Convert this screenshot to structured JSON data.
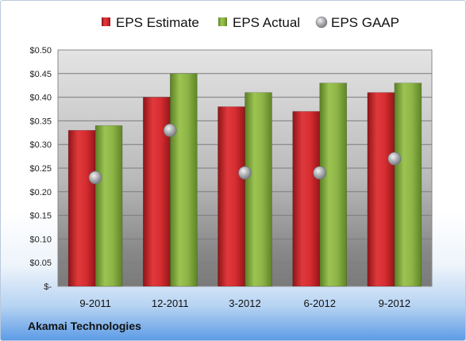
{
  "company": "Akamai Technologies",
  "chart_data": {
    "type": "bar",
    "categories": [
      "9-2011",
      "12-2011",
      "3-2012",
      "6-2012",
      "9-2012"
    ],
    "series": [
      {
        "name": "EPS Estimate",
        "kind": "bar",
        "color": "#c0262c",
        "values": [
          0.33,
          0.4,
          0.38,
          0.37,
          0.41
        ]
      },
      {
        "name": "EPS Actual",
        "kind": "bar",
        "color": "#7aa23a",
        "values": [
          0.34,
          0.45,
          0.41,
          0.43,
          0.43
        ]
      },
      {
        "name": "EPS GAAP",
        "kind": "marker",
        "color": "#a9acb1",
        "values": [
          0.23,
          0.33,
          0.24,
          0.24,
          0.27
        ]
      }
    ],
    "yticks": [
      "$-",
      "$0.05",
      "$0.10",
      "$0.15",
      "$0.20",
      "$0.25",
      "$0.30",
      "$0.35",
      "$0.40",
      "$0.45",
      "$0.50"
    ],
    "ylim": [
      0,
      0.5
    ],
    "grid": true,
    "legend": "top"
  }
}
